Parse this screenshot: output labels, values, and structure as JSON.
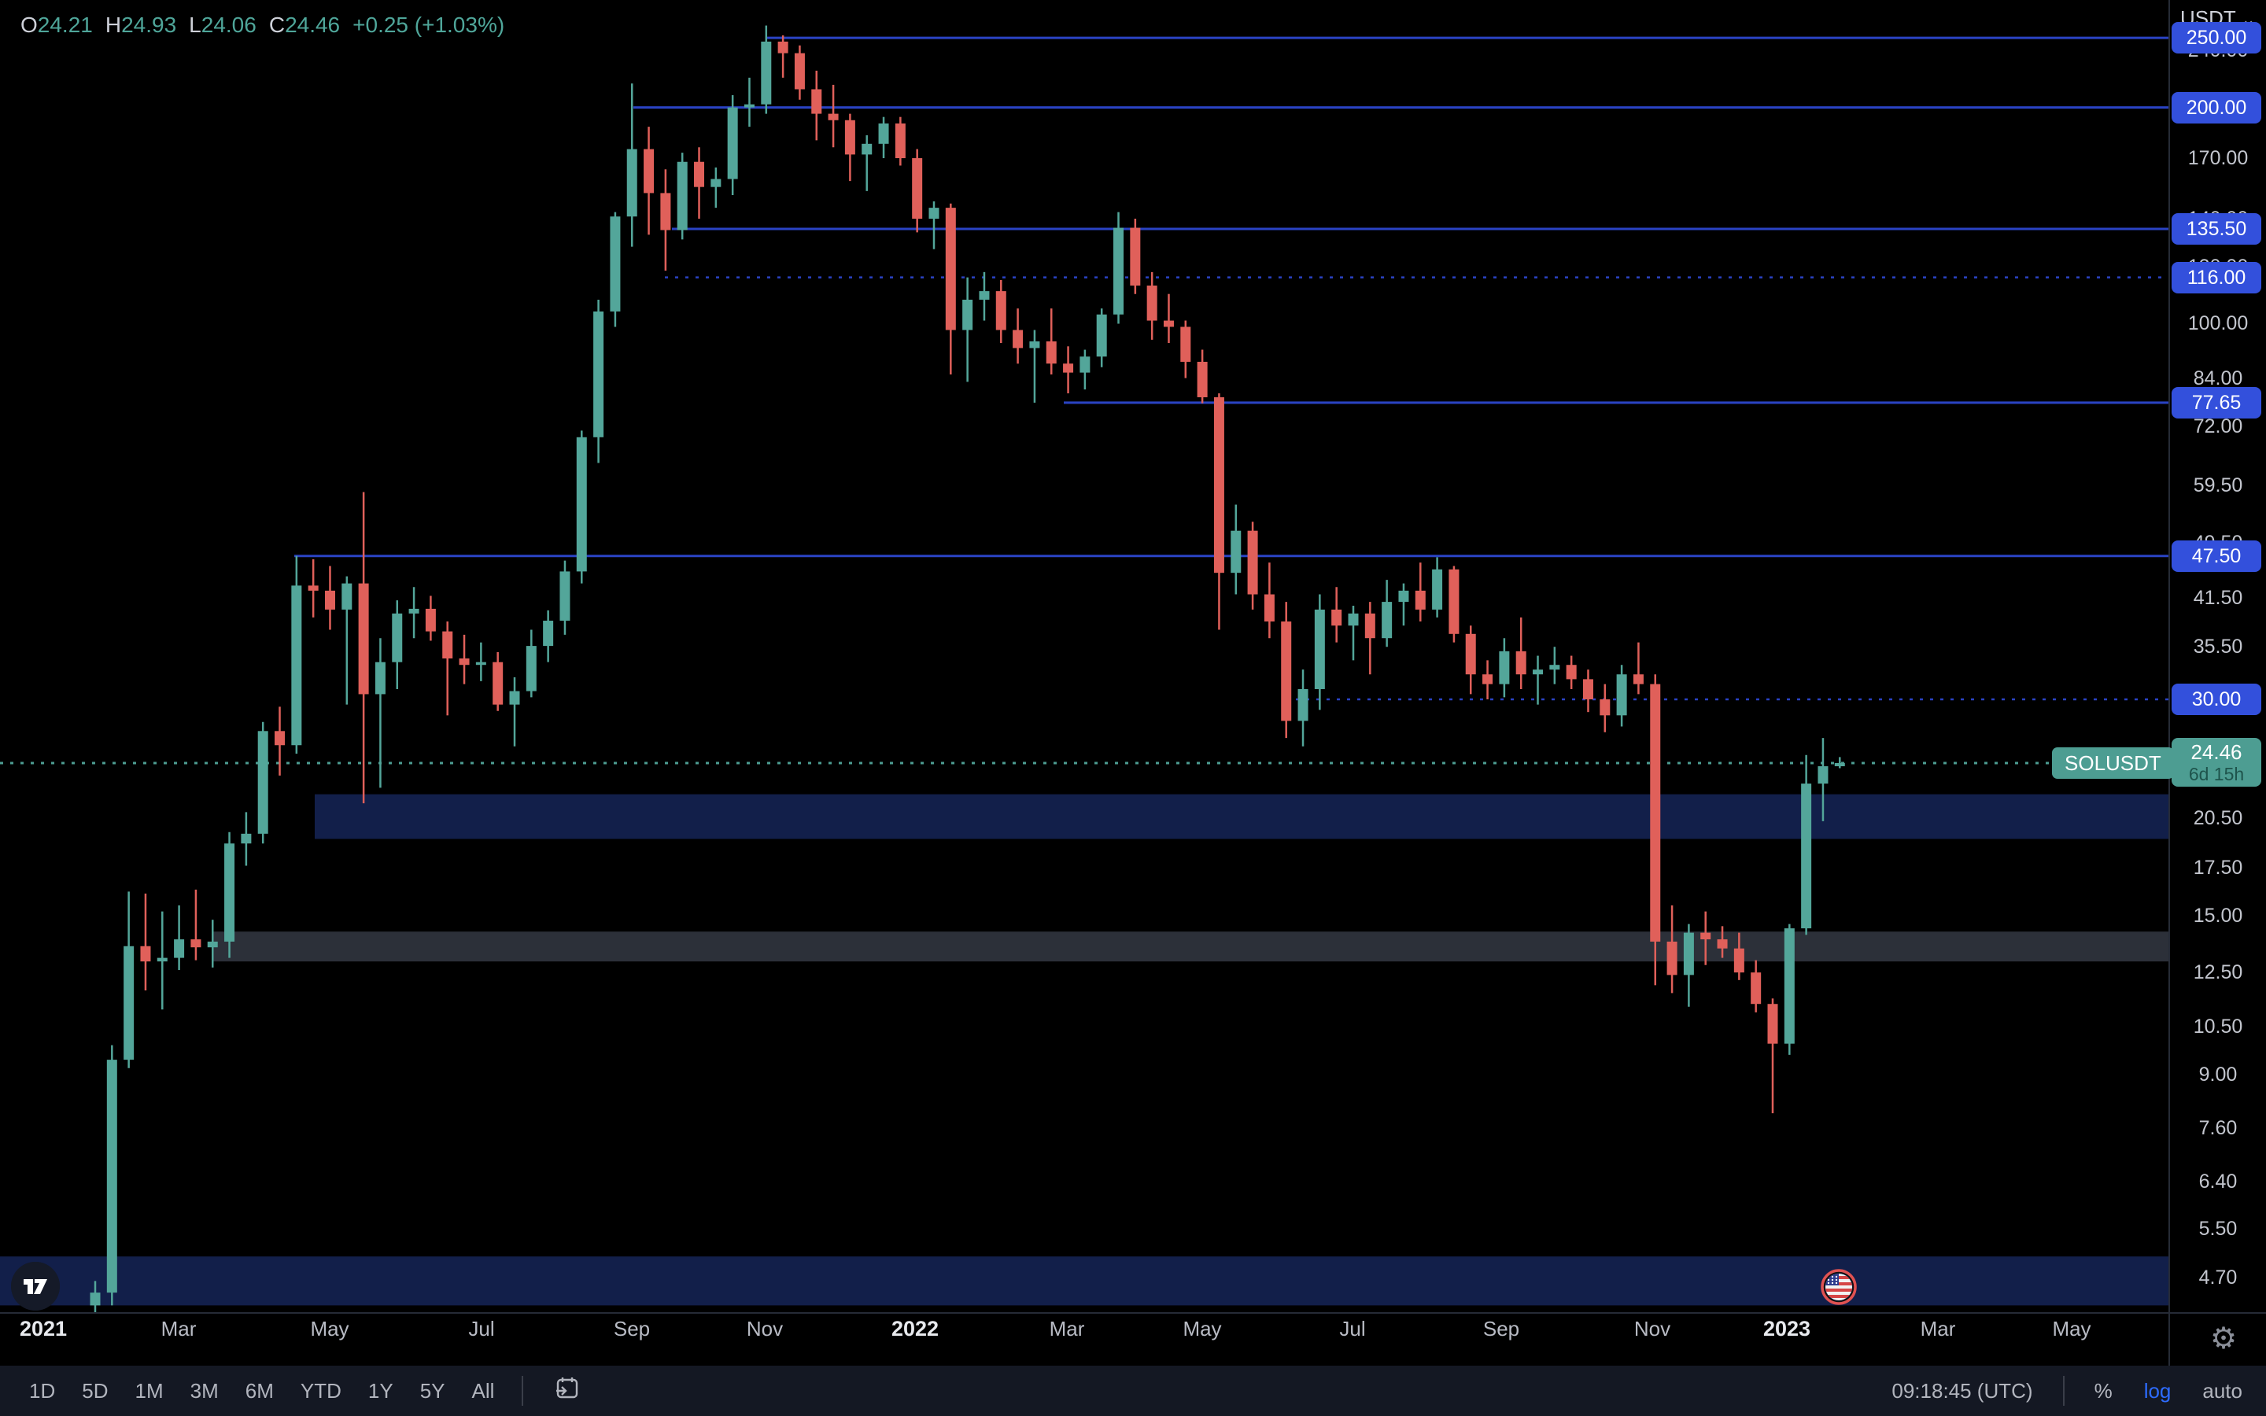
{
  "header": {
    "legend": {
      "items": [
        {
          "k": "O",
          "v": "24.21"
        },
        {
          "k": "H",
          "v": "24.93"
        },
        {
          "k": "L",
          "v": "24.06"
        },
        {
          "k": "C",
          "v": "24.46"
        }
      ],
      "change": "+0.25 (+1.03%)"
    },
    "currency": {
      "label": "USDT",
      "chevron": "⌄"
    }
  },
  "colors": {
    "up": "#53a69a",
    "down": "#e0605a",
    "line_blue": "#2a43c4",
    "pill_blue": "#3350dc",
    "price_teal": "#4d9d92",
    "countdown_text": "#1e544c",
    "zone_navy": "#121f4a",
    "zone_gray": "#2c3039",
    "axis_text": "#c3c6ce",
    "log_blue": "#2d6bff"
  },
  "chart_data": {
    "type": "candlestick",
    "symbol": "SOLUSDT",
    "scale_mode": "log",
    "title": "",
    "ylim": [
      4.35,
      282
    ],
    "grid": false,
    "y_axis": {
      "ticks": [
        "240.00",
        "170.00",
        "140.00",
        "120.00",
        "100.00",
        "84.00",
        "72.00",
        "59.50",
        "49.50",
        "41.50",
        "35.50",
        "20.50",
        "17.50",
        "15.00",
        "12.50",
        "10.50",
        "9.00",
        "7.60",
        "6.40",
        "5.50",
        "4.70"
      ]
    },
    "x_axis": {
      "labels": [
        {
          "t": "2021",
          "x": 55,
          "year": true
        },
        {
          "t": "Mar",
          "x": 227,
          "year": false
        },
        {
          "t": "May",
          "x": 419,
          "year": false
        },
        {
          "t": "Jul",
          "x": 612,
          "year": false
        },
        {
          "t": "Sep",
          "x": 803,
          "year": false
        },
        {
          "t": "Nov",
          "x": 972,
          "year": false
        },
        {
          "t": "2022",
          "x": 1163,
          "year": true
        },
        {
          "t": "Mar",
          "x": 1356,
          "year": false
        },
        {
          "t": "May",
          "x": 1528,
          "year": false
        },
        {
          "t": "Jul",
          "x": 1719,
          "year": false
        },
        {
          "t": "Sep",
          "x": 1908,
          "year": false
        },
        {
          "t": "Nov",
          "x": 2100,
          "year": false
        },
        {
          "t": "2023",
          "x": 2271,
          "year": true
        },
        {
          "t": "Mar",
          "x": 2463,
          "year": false
        },
        {
          "t": "May",
          "x": 2633,
          "year": false
        }
      ]
    },
    "levels": [
      {
        "label": "250.00",
        "p": 250,
        "x1": 975,
        "style": "solid"
      },
      {
        "label": "200.00",
        "p": 200,
        "x1": 805,
        "style": "solid"
      },
      {
        "label": "135.50",
        "p": 135.5,
        "x1": 854,
        "style": "solid"
      },
      {
        "label": "116.00",
        "p": 116,
        "x1": 845,
        "style": "dotted"
      },
      {
        "label": "77.65",
        "p": 77.65,
        "x1": 1352,
        "style": "solid"
      },
      {
        "label": "47.50",
        "p": 47.5,
        "x1": 374,
        "style": "solid"
      },
      {
        "label": "30.00",
        "p": 30,
        "x1": 1634,
        "style": "dotted"
      }
    ],
    "zones": [
      {
        "x1": 400,
        "x2": 2756,
        "p_top": 22.13,
        "p_bottom": 19.18,
        "color_key": "zone_navy"
      },
      {
        "x1": 270,
        "x2": 2756,
        "p_top": 14.25,
        "p_bottom": 12.95,
        "color_key": "zone_gray"
      },
      {
        "x1": 0,
        "x2": 2756,
        "p_top": 5.03,
        "p_bottom": 4.3,
        "color_key": "zone_navy"
      }
    ],
    "price_line": {
      "label": "24.46",
      "p": 24.46,
      "countdown": "6d 15h",
      "symbol": "SOLUSDT"
    },
    "candles": [
      [
        "2021-01-25",
        4.3,
        4.65,
        4.15,
        4.48
      ],
      [
        "2021-02-01",
        4.48,
        9.9,
        4.3,
        9.45
      ],
      [
        "2021-02-08",
        9.45,
        16.2,
        9.2,
        13.6
      ],
      [
        "2021-02-15",
        13.6,
        16.1,
        11.8,
        12.95
      ],
      [
        "2021-02-22",
        12.95,
        15.2,
        11.1,
        13.1
      ],
      [
        "2021-03-01",
        13.1,
        15.5,
        12.6,
        13.9
      ],
      [
        "2021-03-08",
        13.9,
        16.3,
        13.0,
        13.55
      ],
      [
        "2021-03-15",
        13.55,
        14.8,
        12.7,
        13.8
      ],
      [
        "2021-03-22",
        13.8,
        19.6,
        13.1,
        18.9
      ],
      [
        "2021-03-29",
        18.9,
        20.9,
        17.6,
        19.5
      ],
      [
        "2021-04-05",
        19.5,
        27.9,
        18.9,
        27.1
      ],
      [
        "2021-04-12",
        27.1,
        29.3,
        23.5,
        25.9
      ],
      [
        "2021-04-19",
        25.9,
        47.5,
        25.2,
        43.2
      ],
      [
        "2021-04-26",
        43.2,
        47.0,
        39.0,
        42.5
      ],
      [
        "2021-05-03",
        42.5,
        46.0,
        37.5,
        40.0
      ],
      [
        "2021-05-10",
        40.0,
        44.5,
        29.5,
        43.5
      ],
      [
        "2021-05-17",
        43.5,
        58.3,
        21.5,
        30.5
      ],
      [
        "2021-05-24",
        30.5,
        36.5,
        22.6,
        33.8
      ],
      [
        "2021-05-31",
        33.8,
        41.2,
        31.0,
        39.5
      ],
      [
        "2021-06-07",
        39.5,
        43.0,
        36.5,
        40.1
      ],
      [
        "2021-06-14",
        40.1,
        41.8,
        36.2,
        37.3
      ],
      [
        "2021-06-21",
        37.3,
        38.5,
        28.5,
        34.2
      ],
      [
        "2021-06-28",
        34.2,
        36.9,
        31.5,
        33.5
      ],
      [
        "2021-07-05",
        33.5,
        36.0,
        31.8,
        33.8
      ],
      [
        "2021-07-12",
        33.8,
        34.9,
        28.9,
        29.5
      ],
      [
        "2021-07-19",
        29.5,
        32.2,
        25.8,
        30.8
      ],
      [
        "2021-07-26",
        30.8,
        37.5,
        30.2,
        35.6
      ],
      [
        "2021-08-02",
        35.6,
        39.9,
        33.8,
        38.6
      ],
      [
        "2021-08-09",
        38.6,
        46.8,
        36.9,
        45.2
      ],
      [
        "2021-08-16",
        45.2,
        71.0,
        43.5,
        69.5
      ],
      [
        "2021-08-23",
        69.5,
        108.0,
        64.0,
        104.0
      ],
      [
        "2021-08-30",
        104.0,
        143.0,
        99.0,
        141.0
      ],
      [
        "2021-09-06",
        141.0,
        216.0,
        128.0,
        175.0
      ],
      [
        "2021-09-13",
        175.0,
        188.0,
        133.0,
        152.0
      ],
      [
        "2021-09-20",
        152.0,
        164.0,
        118.5,
        135.0
      ],
      [
        "2021-09-27",
        135.0,
        173.0,
        131.0,
        168.0
      ],
      [
        "2021-10-04",
        168.0,
        176.0,
        140.0,
        155.0
      ],
      [
        "2021-10-11",
        155.0,
        165.0,
        145.0,
        159.0
      ],
      [
        "2021-10-18",
        159.0,
        208.0,
        151.0,
        200.0
      ],
      [
        "2021-10-25",
        200.0,
        220.0,
        188.0,
        202.0
      ],
      [
        "2021-11-01",
        202.0,
        260.0,
        196.0,
        247.0
      ],
      [
        "2021-11-08",
        247.0,
        252.0,
        220.0,
        238.0
      ],
      [
        "2021-11-15",
        238.0,
        244.0,
        205.0,
        212.0
      ],
      [
        "2021-11-22",
        212.0,
        225.0,
        180.0,
        196.0
      ],
      [
        "2021-11-29",
        196.0,
        215.0,
        176.0,
        192.0
      ],
      [
        "2021-12-06",
        192.0,
        196.0,
        158.0,
        172.0
      ],
      [
        "2021-12-13",
        172.0,
        183.0,
        153.0,
        178.0
      ],
      [
        "2021-12-20",
        178.0,
        194.0,
        170.0,
        190.0
      ],
      [
        "2021-12-27",
        190.0,
        194.0,
        166.0,
        170.0
      ],
      [
        "2022-01-03",
        170.0,
        175.0,
        134.0,
        140.0
      ],
      [
        "2022-01-10",
        140.0,
        148.0,
        127.0,
        145.0
      ],
      [
        "2022-01-17",
        145.0,
        147.0,
        85.0,
        98.0
      ],
      [
        "2022-01-24",
        98.0,
        116.0,
        83.0,
        108.0
      ],
      [
        "2022-01-31",
        108.0,
        118.0,
        101.0,
        111.0
      ],
      [
        "2022-02-07",
        111.0,
        115.0,
        94.0,
        98.0
      ],
      [
        "2022-02-14",
        98.0,
        105.0,
        88.0,
        92.5
      ],
      [
        "2022-02-21",
        92.5,
        98.0,
        77.65,
        94.5
      ],
      [
        "2022-02-28",
        94.5,
        105.0,
        85.0,
        88.0
      ],
      [
        "2022-03-07",
        88.0,
        93.0,
        80.0,
        85.5
      ],
      [
        "2022-03-14",
        85.5,
        92.0,
        81.0,
        90.0
      ],
      [
        "2022-03-21",
        90.0,
        105.0,
        87.0,
        103.0
      ],
      [
        "2022-03-28",
        103.0,
        143.0,
        100.0,
        136.0
      ],
      [
        "2022-04-04",
        136.0,
        140.0,
        110.0,
        113.0
      ],
      [
        "2022-04-11",
        113.0,
        118.0,
        95.0,
        101.0
      ],
      [
        "2022-04-18",
        101.0,
        110.0,
        94.0,
        99.0
      ],
      [
        "2022-04-25",
        99.0,
        101.0,
        84.0,
        88.5
      ],
      [
        "2022-05-02",
        88.5,
        92.0,
        77.5,
        79.0
      ],
      [
        "2022-05-09",
        79.0,
        80.0,
        37.5,
        45.0
      ],
      [
        "2022-05-16",
        45.0,
        56.0,
        42.0,
        51.5
      ],
      [
        "2022-05-23",
        51.5,
        53.0,
        40.0,
        42.0
      ],
      [
        "2022-05-30",
        42.0,
        46.5,
        36.5,
        38.5
      ],
      [
        "2022-06-06",
        38.5,
        41.0,
        26.5,
        28.0
      ],
      [
        "2022-06-13",
        28.0,
        33.0,
        25.8,
        31.0
      ],
      [
        "2022-06-20",
        31.0,
        42.0,
        29.0,
        40.0
      ],
      [
        "2022-06-27",
        40.0,
        43.0,
        36.0,
        38.0
      ],
      [
        "2022-07-04",
        38.0,
        40.5,
        34.0,
        39.5
      ],
      [
        "2022-07-11",
        39.5,
        41.0,
        32.5,
        36.5
      ],
      [
        "2022-07-18",
        36.5,
        44.0,
        35.5,
        41.0
      ],
      [
        "2022-07-25",
        41.0,
        43.5,
        38.0,
        42.5
      ],
      [
        "2022-08-01",
        42.5,
        46.5,
        38.5,
        40.0
      ],
      [
        "2022-08-08",
        40.0,
        47.3,
        39.0,
        45.5
      ],
      [
        "2022-08-15",
        45.5,
        46.0,
        36.0,
        37.0
      ],
      [
        "2022-08-22",
        37.0,
        38.0,
        30.5,
        32.5
      ],
      [
        "2022-08-29",
        32.5,
        34.0,
        30.0,
        31.5
      ],
      [
        "2022-09-05",
        31.5,
        36.5,
        30.2,
        35.0
      ],
      [
        "2022-09-12",
        35.0,
        39.0,
        31.0,
        32.5
      ],
      [
        "2022-09-19",
        32.5,
        34.5,
        29.5,
        33.0
      ],
      [
        "2022-09-26",
        33.0,
        35.5,
        31.5,
        33.5
      ],
      [
        "2022-10-03",
        33.5,
        34.5,
        31.0,
        32.0
      ],
      [
        "2022-10-10",
        32.0,
        33.0,
        28.8,
        30.0
      ],
      [
        "2022-10-17",
        30.0,
        31.5,
        27.0,
        28.5
      ],
      [
        "2022-10-24",
        28.5,
        33.5,
        27.5,
        32.5
      ],
      [
        "2022-10-31",
        32.5,
        36.0,
        30.5,
        31.5
      ],
      [
        "2022-11-07",
        31.5,
        32.5,
        12.0,
        13.8
      ],
      [
        "2022-11-14",
        13.8,
        15.5,
        11.7,
        12.4
      ],
      [
        "2022-11-21",
        12.4,
        14.6,
        11.2,
        14.2
      ],
      [
        "2022-11-28",
        14.2,
        15.2,
        12.8,
        13.9
      ],
      [
        "2022-12-05",
        13.9,
        14.5,
        13.1,
        13.5
      ],
      [
        "2022-12-12",
        13.5,
        14.2,
        12.2,
        12.5
      ],
      [
        "2022-12-19",
        12.5,
        13.0,
        11.0,
        11.3
      ],
      [
        "2022-12-26",
        11.3,
        11.5,
        7.96,
        9.95
      ],
      [
        "2023-01-02",
        9.95,
        14.6,
        9.6,
        14.4
      ],
      [
        "2023-01-09",
        14.4,
        25.1,
        14.1,
        22.9
      ],
      [
        "2023-01-16",
        22.9,
        26.5,
        20.3,
        24.21
      ],
      [
        "2023-01-23",
        24.21,
        24.93,
        24.06,
        24.46
      ]
    ],
    "scale": {
      "A": 2237.9,
      "B": 396.6,
      "x0": 121,
      "dx": 21.32,
      "body_w": 13,
      "wick_w": 2.5,
      "chart_right": 2756,
      "chart_bottom": 1668
    }
  },
  "toolbar": {
    "ranges": [
      "1D",
      "5D",
      "1M",
      "3M",
      "6M",
      "YTD",
      "1Y",
      "5Y",
      "All"
    ],
    "clock": "09:18:45 (UTC)",
    "percent": "%",
    "log": "log",
    "auto": "auto"
  },
  "icons": {
    "gear": "⚙"
  }
}
